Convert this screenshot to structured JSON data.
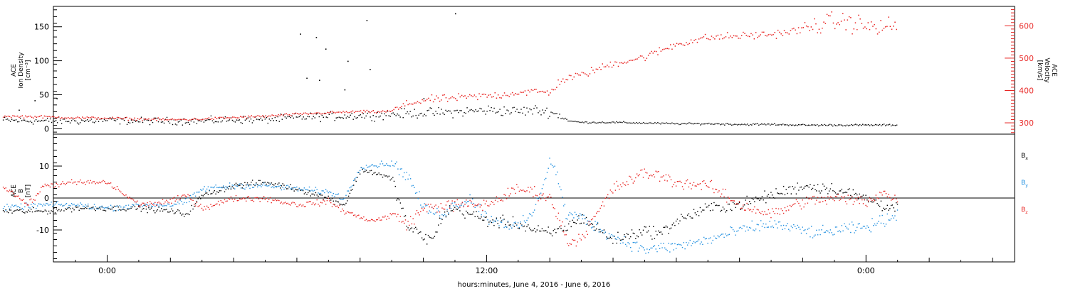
{
  "chart_data": [
    {
      "type": "scatter",
      "panel": "top",
      "ylabel_lines": [
        "ACE",
        "Ion Density",
        "[cm⁻³]"
      ],
      "ylim": [
        -8,
        180
      ],
      "y_ticks": [
        0,
        50,
        100,
        150
      ],
      "y_tick_labels": [
        "0",
        "50",
        "100",
        "150"
      ],
      "y2label_lines": [
        "ACE",
        "Velocity",
        "[km/s]"
      ],
      "y2lim": [
        265,
        660
      ],
      "y2_ticks": [
        300,
        400,
        500,
        600
      ],
      "y2_tick_labels": [
        "300",
        "400",
        "500",
        "600"
      ],
      "series": [
        {
          "name": "",
          "color": "#000000",
          "axis": "left",
          "points": [
            [
              -3.3,
              13
            ],
            [
              -2,
              12
            ],
            [
              -1,
              12
            ],
            [
              0,
              13
            ],
            [
              1,
              12
            ],
            [
              2,
              12
            ],
            [
              3,
              12
            ],
            [
              3.5,
              13
            ],
            [
              4,
              14
            ],
            [
              5,
              14
            ],
            [
              6,
              17
            ],
            [
              7,
              19
            ],
            [
              8,
              20
            ],
            [
              9,
              22
            ],
            [
              10,
              24
            ],
            [
              11,
              25
            ],
            [
              12,
              28
            ],
            [
              13,
              26
            ],
            [
              13.5,
              28
            ],
            [
              14,
              25
            ],
            [
              14.3,
              20
            ],
            [
              14.6,
              12
            ],
            [
              15,
              10
            ],
            [
              16,
              10
            ],
            [
              17,
              9
            ],
            [
              18,
              8
            ],
            [
              19,
              8
            ],
            [
              20,
              7
            ],
            [
              21,
              7
            ],
            [
              22,
              6
            ],
            [
              23,
              6
            ],
            [
              23.5,
              6
            ],
            [
              24.5,
              6
            ],
            [
              25,
              6
            ]
          ],
          "outliers": [
            [
              -2.8,
              28
            ],
            [
              -2.3,
              42
            ],
            [
              -1.6,
              45
            ],
            [
              6.1,
              140
            ],
            [
              6.6,
              135
            ],
            [
              6.9,
              118
            ],
            [
              6.3,
              75
            ],
            [
              6.7,
              72
            ],
            [
              8.2,
              160
            ],
            [
              8.3,
              88
            ],
            [
              7.6,
              100
            ],
            [
              11,
              170
            ],
            [
              7.5,
              58
            ],
            [
              10,
              45
            ]
          ]
        },
        {
          "name": "",
          "color": "#e8211f",
          "axis": "right",
          "points": [
            [
              -3.3,
              322
            ],
            [
              -2,
              320
            ],
            [
              -1,
              317
            ],
            [
              0,
              316
            ],
            [
              1,
              313
            ],
            [
              2,
              311
            ],
            [
              3,
              313
            ],
            [
              4,
              318
            ],
            [
              5,
              322
            ],
            [
              6,
              328
            ],
            [
              7,
              333
            ],
            [
              8,
              336
            ],
            [
              8.5,
              335
            ],
            [
              9,
              338
            ],
            [
              9.5,
              360
            ],
            [
              10,
              372
            ],
            [
              11,
              378
            ],
            [
              12,
              385
            ],
            [
              12.5,
              388
            ],
            [
              13,
              396
            ],
            [
              13.5,
              398
            ],
            [
              14,
              395
            ],
            [
              14.3,
              430
            ],
            [
              14.6,
              440
            ],
            [
              15,
              450
            ],
            [
              16,
              485
            ],
            [
              17,
              505
            ],
            [
              18,
              545
            ],
            [
              19,
              565
            ],
            [
              20,
              570
            ],
            [
              21,
              575
            ],
            [
              22,
              590
            ],
            [
              22.5,
              605
            ],
            [
              23,
              615
            ],
            [
              23.5,
              612
            ],
            [
              24,
              600
            ],
            [
              24.5,
              595
            ],
            [
              25,
              605
            ]
          ]
        }
      ]
    },
    {
      "type": "scatter",
      "panel": "bottom",
      "ylabel_lines": [
        "ACE",
        "B",
        "[nT]"
      ],
      "ylim": [
        -20,
        20
      ],
      "y_ticks": [
        -10,
        0,
        10
      ],
      "y_tick_labels": [
        "-10",
        "0",
        "10"
      ],
      "xlabel": "hours:minutes, June  4, 2016 - June  6, 2016",
      "x_ticks": [
        0,
        12,
        24
      ],
      "x_tick_labels": [
        "0:00",
        "12:00",
        "0:00"
      ],
      "xlim": [
        -1.7,
        28.7
      ],
      "zero_line": 0,
      "series": [
        {
          "name": "B_x",
          "color": "#000000",
          "points": [
            [
              -3.3,
              -4
            ],
            [
              -2,
              -4
            ],
            [
              -1,
              -3
            ],
            [
              0,
              -3
            ],
            [
              1,
              -3
            ],
            [
              2,
              -4
            ],
            [
              2.5,
              -5
            ],
            [
              3,
              1
            ],
            [
              4,
              4
            ],
            [
              5,
              5
            ],
            [
              6,
              3
            ],
            [
              7,
              0
            ],
            [
              7.5,
              -2
            ],
            [
              8,
              9
            ],
            [
              8.5,
              8
            ],
            [
              9,
              6
            ],
            [
              9.5,
              -9
            ],
            [
              10,
              -12
            ],
            [
              10.3,
              -13
            ],
            [
              10.6,
              -5
            ],
            [
              11,
              -3
            ],
            [
              12,
              -7
            ],
            [
              13,
              -8
            ],
            [
              13.5,
              -10
            ],
            [
              14,
              -11
            ],
            [
              14.5,
              -9
            ],
            [
              15,
              -6
            ],
            [
              16,
              -13
            ],
            [
              17,
              -10
            ],
            [
              17.5,
              -11
            ],
            [
              18,
              -7
            ],
            [
              19,
              -3
            ],
            [
              20,
              -2
            ],
            [
              21,
              1
            ],
            [
              22,
              4
            ],
            [
              23,
              3
            ],
            [
              24,
              0
            ],
            [
              24.5,
              -2
            ],
            [
              25,
              -3
            ]
          ]
        },
        {
          "name": "B_y",
          "color": "#1f8fe0",
          "points": [
            [
              -3.3,
              -3
            ],
            [
              -2,
              -2
            ],
            [
              -1,
              -2
            ],
            [
              0,
              -3
            ],
            [
              1,
              -2
            ],
            [
              2,
              -2
            ],
            [
              2.5,
              -1
            ],
            [
              3,
              3
            ],
            [
              4,
              4
            ],
            [
              5,
              4
            ],
            [
              6,
              3
            ],
            [
              7,
              2
            ],
            [
              7.5,
              0
            ],
            [
              8,
              10
            ],
            [
              9,
              11
            ],
            [
              9.5,
              7
            ],
            [
              10,
              -3
            ],
            [
              10.5,
              -5
            ],
            [
              11,
              -2
            ],
            [
              11.5,
              0
            ],
            [
              12,
              -6
            ],
            [
              13,
              -9
            ],
            [
              13.5,
              -4
            ],
            [
              14,
              12
            ],
            [
              14.2,
              8
            ],
            [
              14.5,
              -5
            ],
            [
              15,
              -6
            ],
            [
              16,
              -12
            ],
            [
              17,
              -16
            ],
            [
              18,
              -15
            ],
            [
              19,
              -13
            ],
            [
              20,
              -10
            ],
            [
              21,
              -8
            ],
            [
              22,
              -10
            ],
            [
              22.5,
              -11
            ],
            [
              23,
              -10
            ],
            [
              24,
              -9
            ],
            [
              24.5,
              -7
            ],
            [
              25,
              -5
            ]
          ]
        },
        {
          "name": "B_z",
          "color": "#e8211f",
          "points": [
            [
              -3.3,
              4
            ],
            [
              -2.5,
              -2
            ],
            [
              -2,
              4
            ],
            [
              -1,
              5
            ],
            [
              0,
              5
            ],
            [
              1,
              -2
            ],
            [
              2,
              -1
            ],
            [
              2.5,
              1
            ],
            [
              3,
              -3
            ],
            [
              4,
              0
            ],
            [
              5,
              0
            ],
            [
              6,
              -2
            ],
            [
              7,
              -1
            ],
            [
              7.5,
              -4
            ],
            [
              8,
              -6
            ],
            [
              8.5,
              -7
            ],
            [
              9,
              -5
            ],
            [
              9.5,
              -8
            ],
            [
              10,
              -3
            ],
            [
              11,
              -2
            ],
            [
              12,
              -2
            ],
            [
              13,
              3
            ],
            [
              13.5,
              2
            ],
            [
              14,
              0
            ],
            [
              14.6,
              -14
            ],
            [
              15,
              -12
            ],
            [
              16,
              3
            ],
            [
              17,
              8
            ],
            [
              17.5,
              7
            ],
            [
              18,
              5
            ],
            [
              19,
              4
            ],
            [
              20,
              -2
            ],
            [
              21,
              -5
            ],
            [
              22,
              -1
            ],
            [
              23,
              0
            ],
            [
              24,
              -1
            ],
            [
              24.5,
              2
            ],
            [
              25,
              -1
            ]
          ]
        }
      ]
    }
  ]
}
